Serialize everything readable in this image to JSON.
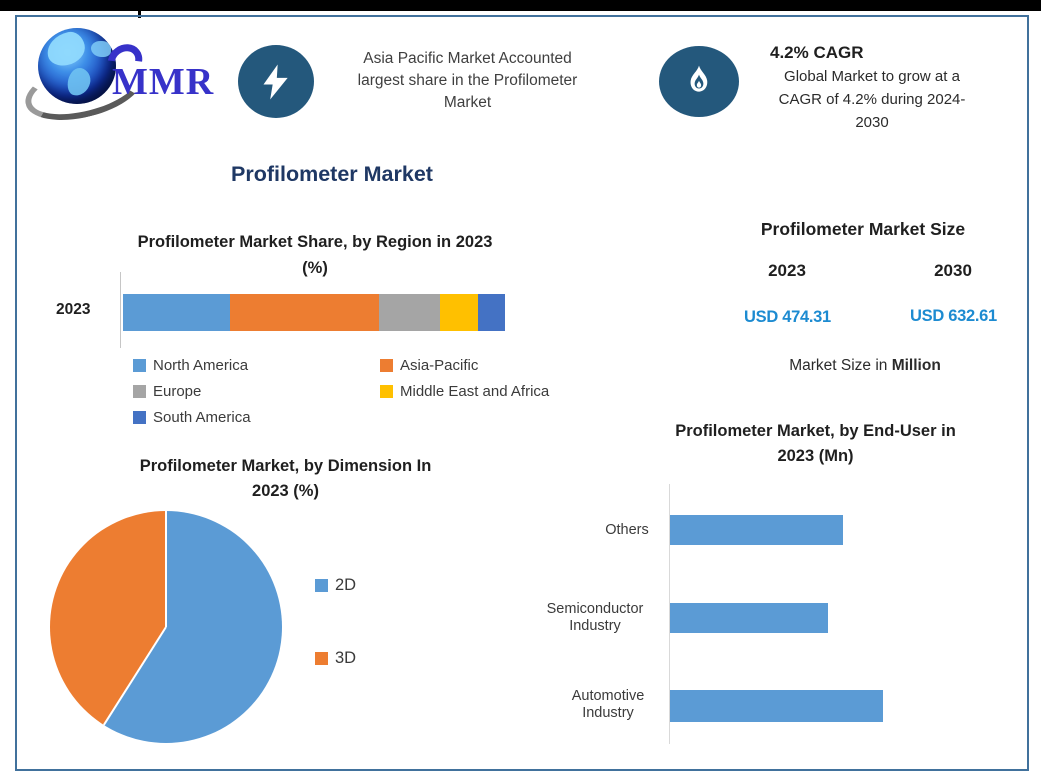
{
  "logo": {
    "text": "MMR"
  },
  "badges": {
    "market_share_note": {
      "icon": "lightning-bolt",
      "lines": [
        "Asia Pacific Market Accounted",
        "largest share in the Profilometer",
        "Market"
      ]
    },
    "cagr_note": {
      "icon": "flame",
      "title": "4.2% CAGR",
      "lines": [
        "Global Market to grow at a",
        "CAGR of 4.2% during 2024-",
        "2030"
      ]
    }
  },
  "main_title": "Profilometer Market",
  "market_size_panel": {
    "title": "Profilometer Market Size",
    "year_left": "2023",
    "year_right": "2030",
    "value_left": "USD 474.31",
    "value_right": "USD 632.61",
    "note_prefix": "Market Size in ",
    "note_bold": "Million"
  },
  "colors": {
    "frame_border": "#41719C",
    "badge_blue": "#24587C",
    "usd_value_blue": "#1D8BD1",
    "navy_title": "#1F3864",
    "series_blue": "#5B9BD5",
    "series_orange": "#ED7D31",
    "series_gray": "#A5A5A5",
    "series_yellow": "#FFC000",
    "series_dark_blue": "#4472C4"
  },
  "chart_data": [
    {
      "id": "region_share",
      "type": "bar",
      "subtype": "stacked-horizontal",
      "title": "Profilometer Market Share, by Region in 2023",
      "title_line2": "(%)",
      "categories": [
        "2023"
      ],
      "unit": "%",
      "values_estimated": true,
      "series": [
        {
          "name": "North America",
          "value": 28,
          "color": "#5B9BD5"
        },
        {
          "name": "Asia-Pacific",
          "value": 39,
          "color": "#ED7D31"
        },
        {
          "name": "Europe",
          "value": 16,
          "color": "#A5A5A5"
        },
        {
          "name": "Middle East and Africa",
          "value": 10,
          "color": "#FFC000"
        },
        {
          "name": "South America",
          "value": 7,
          "color": "#4472C4"
        }
      ],
      "legend_position": "bottom"
    },
    {
      "id": "dimension",
      "type": "pie",
      "title": "Profilometer Market, by Dimension In",
      "title_line2": "2023 (%)",
      "unit": "%",
      "values_estimated": true,
      "start_angle_deg": 0,
      "direction": "clockwise",
      "slices": [
        {
          "name": "2D",
          "value": 59,
          "color": "#5B9BD5"
        },
        {
          "name": "3D",
          "value": 41,
          "color": "#ED7D31"
        }
      ],
      "legend_position": "right"
    },
    {
      "id": "end_user",
      "type": "bar",
      "subtype": "horizontal",
      "title": "Profilometer Market, by End-User in",
      "title_line2": "2023 (Mn)",
      "categories": [
        "Others",
        "Semiconductor Industry",
        "Automotive Industry"
      ],
      "values_pct_of_max": [
        81,
        74,
        100
      ],
      "axis_values_shown": false,
      "bar_color": "#5B9BD5"
    }
  ]
}
